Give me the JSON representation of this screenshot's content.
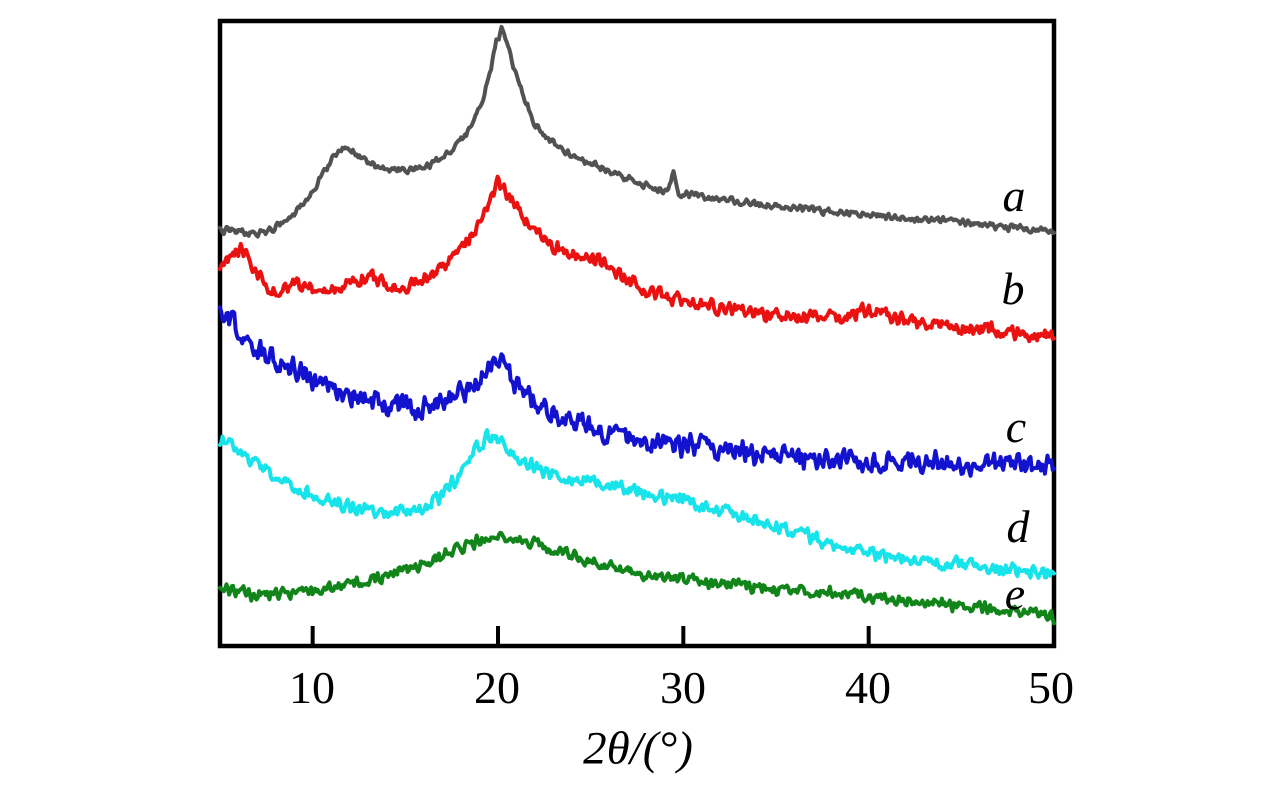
{
  "figure": {
    "background": "#ffffff",
    "axis_color": "#000000"
  },
  "chart_data": {
    "type": "line",
    "title": "",
    "xlabel": "2θ/(°)",
    "ylabel": "",
    "x_range": [
      5,
      50
    ],
    "x_ticks": [
      10,
      20,
      30,
      40,
      50
    ],
    "y_ticks": [],
    "ylim": [
      0,
      625
    ],
    "grid": false,
    "legend_position": "inline-right-annotations",
    "y_units": "intensity (arbitrary units, curves vertically offset)",
    "series": [
      {
        "label": "a",
        "color": "#525255",
        "noise_amplitude": 3.5,
        "points": [
          [
            5,
            416
          ],
          [
            6,
            415
          ],
          [
            7,
            413
          ],
          [
            7.7,
            416
          ],
          [
            8.5,
            424
          ],
          [
            9,
            432
          ],
          [
            10,
            455
          ],
          [
            10.8,
            480
          ],
          [
            11.3,
            494
          ],
          [
            11.8,
            500
          ],
          [
            12.3,
            493
          ],
          [
            13,
            483
          ],
          [
            13.7,
            478
          ],
          [
            14.5,
            476
          ],
          [
            15.5,
            476
          ],
          [
            16.5,
            482
          ],
          [
            17.5,
            496
          ],
          [
            18.3,
            512
          ],
          [
            19,
            538
          ],
          [
            19.5,
            566
          ],
          [
            19.9,
            604
          ],
          [
            20.2,
            616
          ],
          [
            20.5,
            604
          ],
          [
            20.9,
            576
          ],
          [
            21.4,
            549
          ],
          [
            22,
            522
          ],
          [
            22.7,
            507
          ],
          [
            23.5,
            496
          ],
          [
            24.5,
            486
          ],
          [
            25.5,
            479
          ],
          [
            26.5,
            471
          ],
          [
            27.5,
            463
          ],
          [
            28.5,
            458
          ],
          [
            29.2,
            454
          ],
          [
            29.45,
            474
          ],
          [
            29.7,
            452
          ],
          [
            30.5,
            451
          ],
          [
            32,
            447
          ],
          [
            34,
            442
          ],
          [
            36,
            438
          ],
          [
            38,
            434
          ],
          [
            40,
            431
          ],
          [
            42,
            428
          ],
          [
            44,
            425
          ],
          [
            46,
            421
          ],
          [
            48,
            418
          ],
          [
            50,
            413
          ]
        ]
      },
      {
        "label": "b",
        "color": "#ea1111",
        "noise_amplitude": 7,
        "points": [
          [
            5,
            381
          ],
          [
            5.6,
            390
          ],
          [
            6.1,
            399
          ],
          [
            6.6,
            386
          ],
          [
            7.1,
            372
          ],
          [
            7.6,
            359
          ],
          [
            8.2,
            356
          ],
          [
            9,
            361
          ],
          [
            10,
            358
          ],
          [
            11,
            356
          ],
          [
            12,
            363
          ],
          [
            13,
            371
          ],
          [
            14,
            361
          ],
          [
            15,
            359
          ],
          [
            16,
            367
          ],
          [
            17,
            379
          ],
          [
            18,
            396
          ],
          [
            19,
            424
          ],
          [
            19.6,
            446
          ],
          [
            20,
            464
          ],
          [
            20.4,
            456
          ],
          [
            21,
            440
          ],
          [
            21.6,
            423
          ],
          [
            22.3,
            409
          ],
          [
            23,
            399
          ],
          [
            24,
            394
          ],
          [
            25,
            389
          ],
          [
            26,
            377
          ],
          [
            27,
            365
          ],
          [
            28,
            356
          ],
          [
            29,
            350
          ],
          [
            30,
            346
          ],
          [
            31,
            341
          ],
          [
            32,
            338
          ],
          [
            33,
            336
          ],
          [
            34,
            334
          ],
          [
            35,
            332
          ],
          [
            36,
            330
          ],
          [
            37,
            329
          ],
          [
            38,
            328
          ],
          [
            39,
            331
          ],
          [
            40,
            338
          ],
          [
            40.6,
            334
          ],
          [
            41.3,
            329
          ],
          [
            42,
            325
          ],
          [
            44,
            321
          ],
          [
            46,
            317
          ],
          [
            48,
            313
          ],
          [
            50,
            310
          ]
        ]
      },
      {
        "label": "c",
        "color": "#1313cf",
        "noise_amplitude": 11,
        "points": [
          [
            5,
            334
          ],
          [
            5.5,
            327
          ],
          [
            6,
            317
          ],
          [
            6.5,
            307
          ],
          [
            7,
            298
          ],
          [
            8,
            286
          ],
          [
            9,
            277
          ],
          [
            10,
            267
          ],
          [
            11,
            257
          ],
          [
            12,
            250
          ],
          [
            13,
            245
          ],
          [
            14,
            242
          ],
          [
            15,
            240
          ],
          [
            15.7,
            232
          ],
          [
            16.2,
            239
          ],
          [
            17,
            242
          ],
          [
            18,
            252
          ],
          [
            19,
            268
          ],
          [
            19.8,
            282
          ],
          [
            20.2,
            279
          ],
          [
            21,
            262
          ],
          [
            22,
            246
          ],
          [
            23,
            233
          ],
          [
            24,
            225
          ],
          [
            25,
            217
          ],
          [
            26,
            212
          ],
          [
            27,
            208
          ],
          [
            28,
            205
          ],
          [
            29,
            203
          ],
          [
            30,
            201
          ],
          [
            32,
            197
          ],
          [
            34,
            193
          ],
          [
            36,
            190
          ],
          [
            38,
            187
          ],
          [
            40,
            185
          ],
          [
            42,
            184
          ],
          [
            44,
            183
          ],
          [
            46,
            182
          ],
          [
            48,
            181
          ],
          [
            50,
            179
          ]
        ]
      },
      {
        "label": "d",
        "color": "#17e3ea",
        "noise_amplitude": 7,
        "points": [
          [
            5,
            206
          ],
          [
            6,
            194
          ],
          [
            7,
            181
          ],
          [
            8,
            169
          ],
          [
            9,
            158
          ],
          [
            10,
            151
          ],
          [
            11,
            145
          ],
          [
            12,
            140
          ],
          [
            13,
            136
          ],
          [
            14,
            133
          ],
          [
            15,
            134
          ],
          [
            16,
            139
          ],
          [
            17,
            150
          ],
          [
            18,
            172
          ],
          [
            18.8,
            196
          ],
          [
            19.4,
            210
          ],
          [
            20,
            205
          ],
          [
            20.6,
            195
          ],
          [
            21.2,
            187
          ],
          [
            22,
            178
          ],
          [
            23,
            172
          ],
          [
            24,
            168
          ],
          [
            25,
            165
          ],
          [
            26,
            162
          ],
          [
            27,
            158
          ],
          [
            28,
            154
          ],
          [
            29,
            150
          ],
          [
            30,
            146
          ],
          [
            31,
            141
          ],
          [
            32,
            136
          ],
          [
            33,
            131
          ],
          [
            34,
            126
          ],
          [
            35,
            120
          ],
          [
            36,
            114
          ],
          [
            37,
            108
          ],
          [
            38,
            103
          ],
          [
            39,
            98
          ],
          [
            40,
            94
          ],
          [
            41,
            90
          ],
          [
            42,
            88
          ],
          [
            43,
            85
          ],
          [
            44,
            83
          ],
          [
            45,
            81
          ],
          [
            46,
            79
          ],
          [
            47,
            77
          ],
          [
            48,
            75
          ],
          [
            49,
            74
          ],
          [
            50,
            72
          ]
        ]
      },
      {
        "label": "e",
        "color": "#12851a",
        "noise_amplitude": 6,
        "points": [
          [
            5,
            58
          ],
          [
            6,
            54
          ],
          [
            7,
            51
          ],
          [
            8,
            53
          ],
          [
            9,
            54
          ],
          [
            10,
            54
          ],
          [
            11,
            58
          ],
          [
            12,
            62
          ],
          [
            13,
            66
          ],
          [
            14,
            70
          ],
          [
            15,
            76
          ],
          [
            16,
            82
          ],
          [
            17,
            90
          ],
          [
            18,
            98
          ],
          [
            19,
            105
          ],
          [
            20,
            109
          ],
          [
            21,
            107
          ],
          [
            22,
            103
          ],
          [
            23,
            97
          ],
          [
            24,
            90
          ],
          [
            25,
            84
          ],
          [
            26,
            79
          ],
          [
            27,
            75
          ],
          [
            28,
            72
          ],
          [
            29,
            69
          ],
          [
            30,
            67
          ],
          [
            32,
            63
          ],
          [
            34,
            59
          ],
          [
            36,
            56
          ],
          [
            38,
            53
          ],
          [
            40,
            50
          ],
          [
            42,
            46
          ],
          [
            44,
            42
          ],
          [
            46,
            38
          ],
          [
            48,
            34
          ],
          [
            50,
            29
          ]
        ]
      }
    ]
  }
}
